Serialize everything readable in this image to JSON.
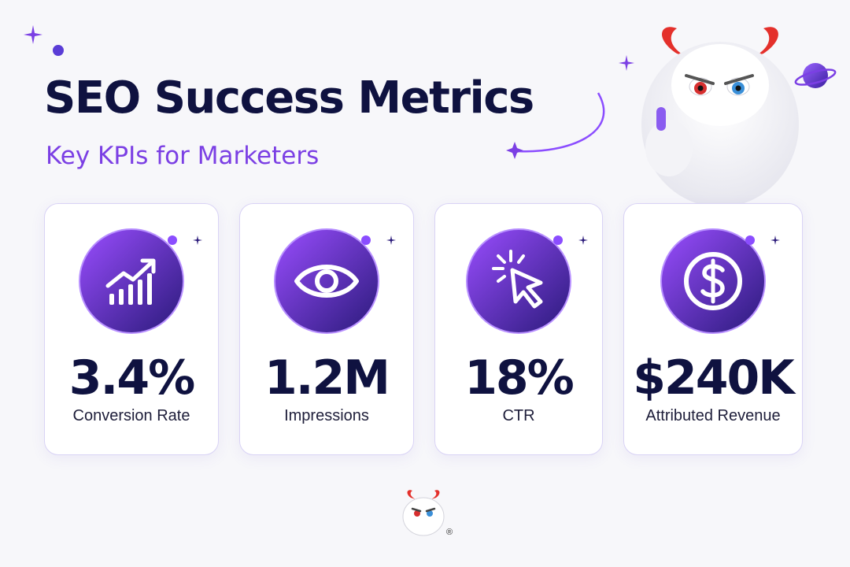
{
  "header": {
    "title": "SEO Success Metrics",
    "subtitle": "Key KPIs for Marketers"
  },
  "colors": {
    "title": "#0f1240",
    "accent": "#7b3fe4",
    "icon_gradient_start": "#9a4dff",
    "icon_gradient_end": "#2a1a7a"
  },
  "metrics": [
    {
      "icon": "trending-chart-icon",
      "value": "3.4%",
      "label": "Conversion Rate"
    },
    {
      "icon": "eye-icon",
      "value": "1.2M",
      "label": "Impressions"
    },
    {
      "icon": "cursor-click-icon",
      "value": "18%",
      "label": "CTR"
    },
    {
      "icon": "dollar-coin-icon",
      "value": "$240K",
      "label": "Attributed Revenue"
    }
  ],
  "footer": {
    "registered_mark": "®"
  }
}
